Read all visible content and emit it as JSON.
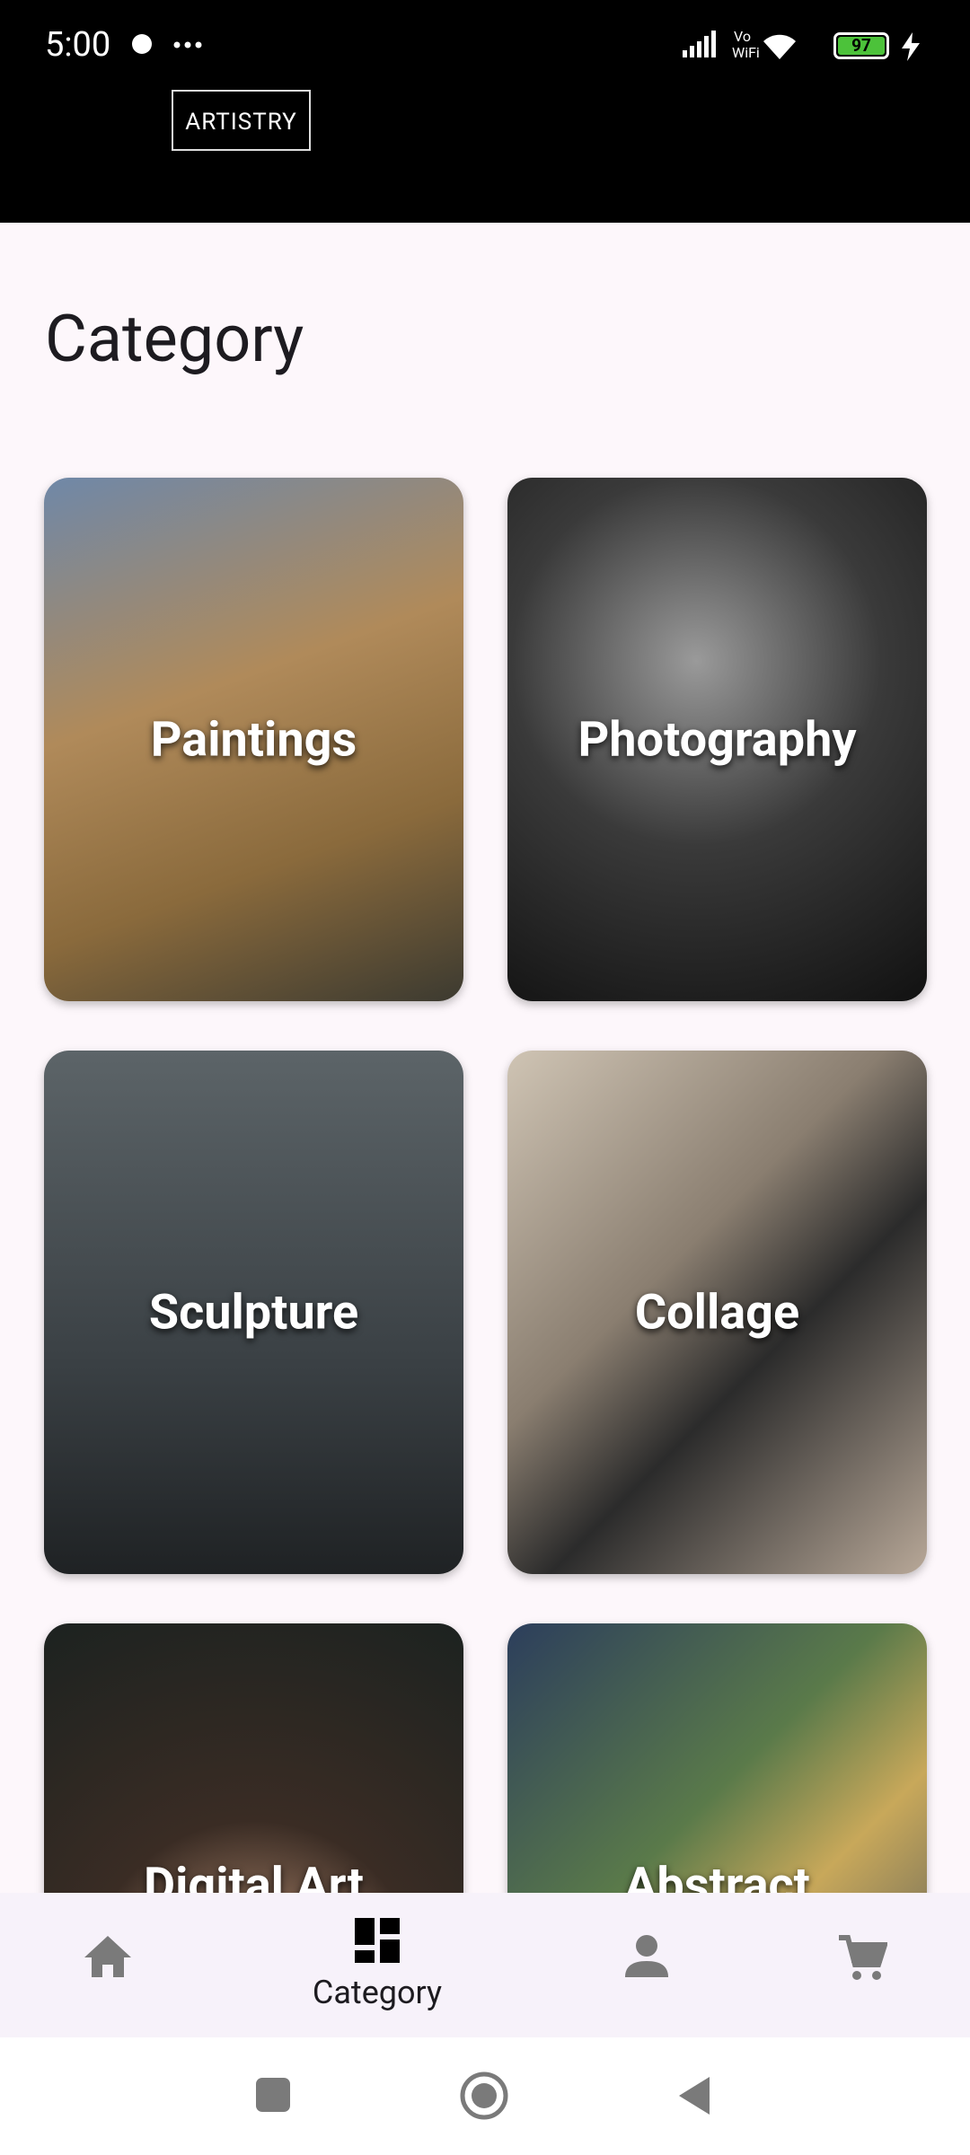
{
  "status_bar": {
    "time": "5:00",
    "battery": "97"
  },
  "header": {
    "logo": "ARTISTRY"
  },
  "page": {
    "title": "Category"
  },
  "categories": [
    {
      "label": "Paintings"
    },
    {
      "label": "Photography"
    },
    {
      "label": "Sculpture"
    },
    {
      "label": "Collage"
    },
    {
      "label": "Digital Art"
    },
    {
      "label": "Abstract"
    }
  ],
  "bottom_nav": {
    "active_label": "Category"
  }
}
